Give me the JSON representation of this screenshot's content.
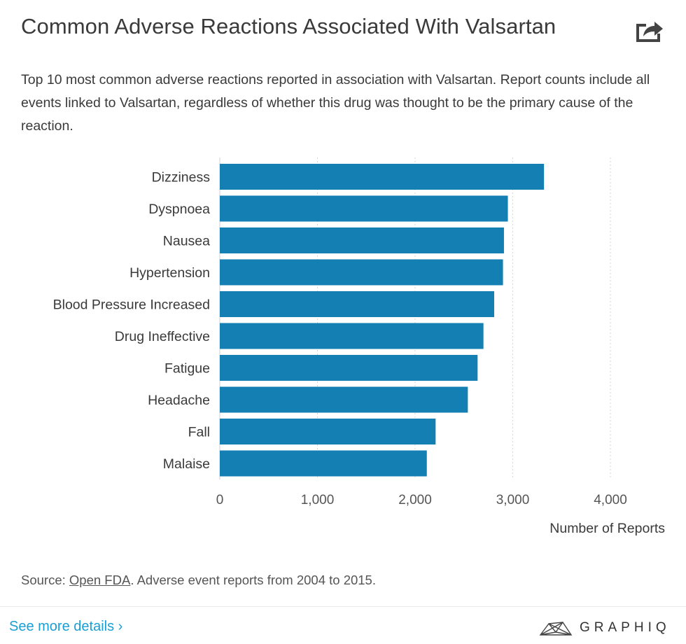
{
  "header": {
    "title": "Common Adverse Reactions Associated With Valsartan",
    "subtitle": "Top 10 most common adverse reactions reported in association with Valsartan. Report counts include all events linked to Valsartan, regardless of whether this drug was thought to be the primary cause of the reaction."
  },
  "footer": {
    "source_prefix": "Source: ",
    "source_link": "Open FDA",
    "source_suffix": ". Adverse event reports from 2004 to 2015.",
    "see_more": "See more details ›",
    "brand": "GRAPHIQ"
  },
  "icons": {
    "share": "share-icon",
    "brand_logo": "graphiq-logo-icon"
  },
  "colors": {
    "bar": "#137fb3",
    "link": "#1a9fd4",
    "grid": "#d6d6d6",
    "text": "#3a3a3a"
  },
  "chart_data": {
    "type": "bar",
    "orientation": "horizontal",
    "title": "Common Adverse Reactions Associated With Valsartan",
    "xlabel": "Number of Reports",
    "ylabel": "",
    "categories": [
      "Dizziness",
      "Dyspnoea",
      "Nausea",
      "Hypertension",
      "Blood Pressure Increased",
      "Drug Ineffective",
      "Fatigue",
      "Headache",
      "Fall",
      "Malaise"
    ],
    "values": [
      3320,
      2950,
      2910,
      2900,
      2810,
      2700,
      2640,
      2540,
      2210,
      2120
    ],
    "xlim": [
      0,
      4000
    ],
    "xticks": [
      0,
      1000,
      2000,
      3000,
      4000
    ],
    "xtick_labels": [
      "0",
      "1,000",
      "2,000",
      "3,000",
      "4,000"
    ],
    "grid": true,
    "legend": "none"
  }
}
